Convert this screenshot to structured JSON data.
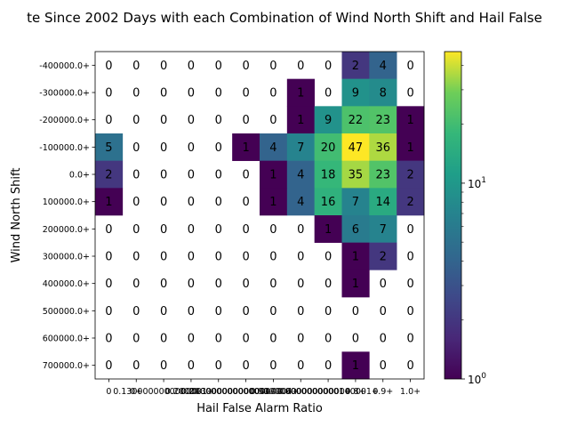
{
  "chart_data": {
    "type": "heatmap",
    "title": "te Since 2002 Days with each Combination of Wind North Shift and Hail False",
    "xlabel": "Hail False Alarm Ratio",
    "ylabel": "Wind North Shift",
    "x_tick_labels": [
      "0",
      "0+",
      "0.1300000000000001+",
      "0.2+",
      "0.20000000000000004+",
      "0.30000000000000004+",
      "0.4+",
      "0.5000000000000001+",
      "0.6000000000000001+",
      "0.8+",
      "0.9+",
      "1.0+"
    ],
    "y_tick_labels": [
      "-400000.0+",
      "-300000.0+",
      "-200000.0+",
      "-100000.0+",
      "0.0+",
      "100000.0+",
      "200000.0+",
      "300000.0+",
      "400000.0+",
      "500000.0+",
      "600000.0+",
      "700000.0+"
    ],
    "values": [
      [
        0,
        0,
        0,
        0,
        0,
        0,
        0,
        0,
        0,
        2,
        4,
        0
      ],
      [
        0,
        0,
        0,
        0,
        0,
        0,
        0,
        1,
        0,
        9,
        8,
        0
      ],
      [
        0,
        0,
        0,
        0,
        0,
        0,
        0,
        1,
        9,
        22,
        23,
        1
      ],
      [
        5,
        0,
        0,
        0,
        0,
        1,
        4,
        7,
        20,
        47,
        36,
        1
      ],
      [
        2,
        0,
        0,
        0,
        0,
        0,
        1,
        4,
        18,
        35,
        23,
        2
      ],
      [
        1,
        0,
        0,
        0,
        0,
        0,
        1,
        4,
        16,
        7,
        14,
        2
      ],
      [
        0,
        0,
        0,
        0,
        0,
        0,
        0,
        0,
        1,
        6,
        7,
        0
      ],
      [
        0,
        0,
        0,
        0,
        0,
        0,
        0,
        0,
        0,
        1,
        2,
        0
      ],
      [
        0,
        0,
        0,
        0,
        0,
        0,
        0,
        0,
        0,
        1,
        0,
        0
      ],
      [
        0,
        0,
        0,
        0,
        0,
        0,
        0,
        0,
        0,
        0,
        0,
        0
      ],
      [
        0,
        0,
        0,
        0,
        0,
        0,
        0,
        0,
        0,
        0,
        0,
        0
      ],
      [
        0,
        0,
        0,
        0,
        0,
        0,
        0,
        0,
        0,
        1,
        0,
        0
      ]
    ],
    "color_scale": "log",
    "colormap": "viridis",
    "colorbar": {
      "min": 1,
      "max": 47,
      "tick_labels": [
        "10^0",
        "10^1"
      ],
      "tick_values": [
        1,
        10
      ]
    },
    "grid": false,
    "legend": "colorbar-right"
  }
}
